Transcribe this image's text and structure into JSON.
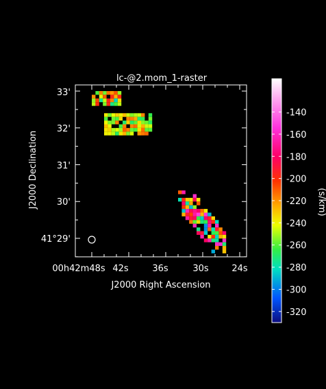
{
  "chart_data": {
    "type": "heatmap",
    "title": "lc-@2.mom_1-raster",
    "xlabel": "J2000 Right Ascension",
    "ylabel": "J2000 Declination",
    "x_ticks": [
      "00h42m48s",
      "42s",
      "36s",
      "30s",
      "24s"
    ],
    "y_ticks": [
      "33'",
      "32'",
      "31'",
      "30'",
      "41°29'"
    ],
    "colorbar": {
      "label": "(s/km)",
      "range": [
        -330,
        -110
      ],
      "ticks": [
        -140,
        -160,
        -180,
        -200,
        -220,
        -240,
        -260,
        -280,
        -300,
        -320
      ]
    },
    "beam": "circle",
    "regions": [
      {
        "name": "north-west clump",
        "ra_s": [
          48,
          43
        ],
        "dec_arcmin": [
          32.6,
          33.0
        ],
        "value_range": [
          -290,
          -190
        ]
      },
      {
        "name": "upper-middle clump",
        "ra_s": [
          46,
          38
        ],
        "dec_arcmin": [
          31.8,
          32.4
        ],
        "value_range": [
          -270,
          -210
        ]
      },
      {
        "name": "south-east ridge",
        "ra_s": [
          34,
          26
        ],
        "dec_arcmin": [
          28.6,
          30.3
        ],
        "value_range": [
          -300,
          -150
        ]
      }
    ]
  }
}
